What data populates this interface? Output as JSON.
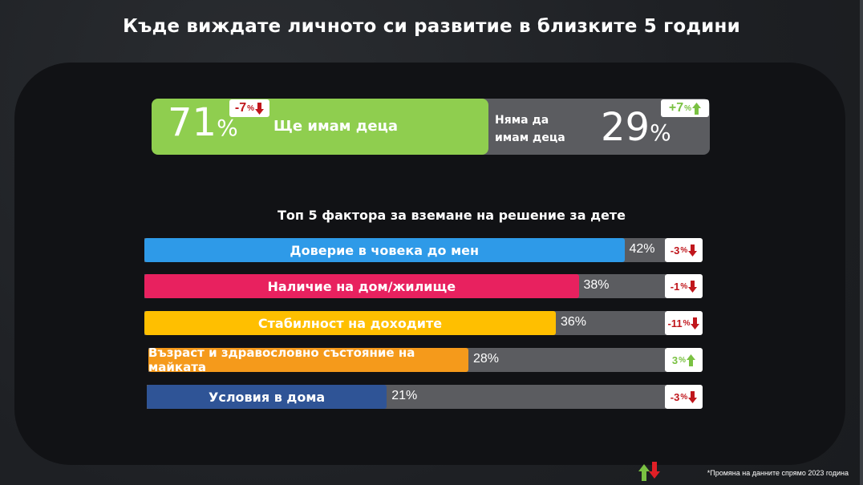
{
  "title": "Къде виждате личното си развитие в близките 5 години",
  "split": {
    "left_value": "71",
    "left_unit": "%",
    "left_label": "Ще имам деца",
    "left_delta": "-7",
    "left_delta_unit": "%",
    "right_label_line1": "Няма да",
    "right_label_line2": "имам деца",
    "right_value": "29",
    "right_unit": "%",
    "right_delta": "+7",
    "right_delta_unit": "%"
  },
  "subtitle": "Топ 5 фактора за вземане на решение за дете",
  "colors": {
    "green": "#8fce4f",
    "gray": "#5b5c60",
    "down_red": "#c0161c",
    "up_green": "#7ac142",
    "bar1": "#2e9ae8",
    "bar2": "#e8215f",
    "bar3": "#ffbf00",
    "bar4": "#f59a1b",
    "bar5": "#2f5496"
  },
  "chart_data": {
    "type": "bar",
    "orientation": "horizontal",
    "title": "Топ 5 фактора за вземане на решение за дете",
    "categories": [
      "Доверие в човека до мен",
      "Наличие на дом/жилище",
      "Стабилност на доходите",
      "Възраст и здравословно състояние на майката",
      "Условия в дома"
    ],
    "values": [
      42,
      38,
      36,
      28,
      21
    ],
    "value_labels": [
      "42%",
      "38%",
      "36%",
      "28%",
      "21%"
    ],
    "changes": [
      "-3",
      "-1",
      "-11",
      "3",
      "-3"
    ],
    "change_unit": "%",
    "change_direction": [
      "down",
      "down",
      "down",
      "up",
      "down"
    ],
    "bar_colors": [
      "#2e9ae8",
      "#e8215f",
      "#ffbf00",
      "#f59a1b",
      "#2f5496"
    ],
    "xlim": [
      0,
      50
    ]
  },
  "footnote": "*Промяна на данните спрямо 2023 година"
}
